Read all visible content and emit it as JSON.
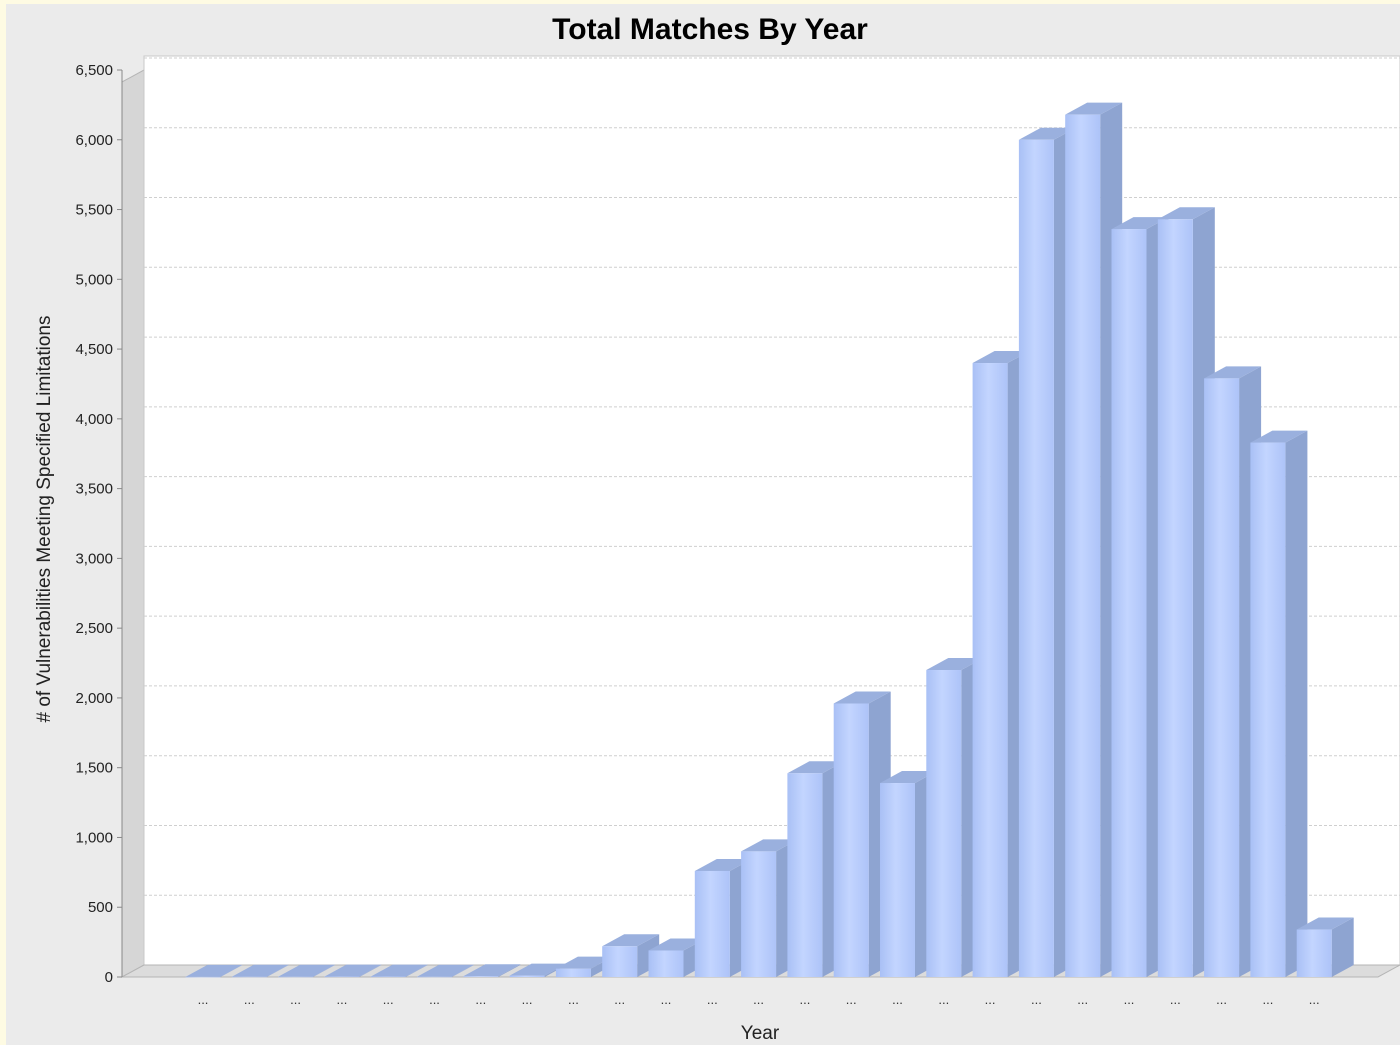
{
  "chart_data": {
    "type": "bar",
    "title": "Total Matches By Year",
    "xlabel": "Year",
    "ylabel": "# of Vulnerabilities Meeting Specified Limitations",
    "ylim": [
      0,
      6500
    ],
    "yticks": [
      0,
      500,
      1000,
      1500,
      2000,
      2500,
      3000,
      3500,
      4000,
      4500,
      5000,
      5500,
      6000,
      6500
    ],
    "ytick_labels": [
      "0",
      "500",
      "1,000",
      "1,500",
      "2,000",
      "2,500",
      "3,000",
      "3,500",
      "4,000",
      "4,500",
      "5,000",
      "5,500",
      "6,000",
      "6,500"
    ],
    "grid": true,
    "legend": "none",
    "bar_color": "#b7ccfb",
    "categories": [
      "...",
      "...",
      "...",
      "...",
      "...",
      "...",
      "...",
      "...",
      "...",
      "...",
      "...",
      "...",
      "...",
      "...",
      "...",
      "...",
      "...",
      "...",
      "...",
      "...",
      "...",
      "...",
      "...",
      "...",
      "..."
    ],
    "values": [
      1,
      2,
      2,
      3,
      3,
      2,
      5,
      10,
      60,
      220,
      190,
      760,
      900,
      1460,
      1960,
      1390,
      2200,
      4400,
      6000,
      6180,
      5360,
      5430,
      4290,
      3830,
      340
    ]
  }
}
